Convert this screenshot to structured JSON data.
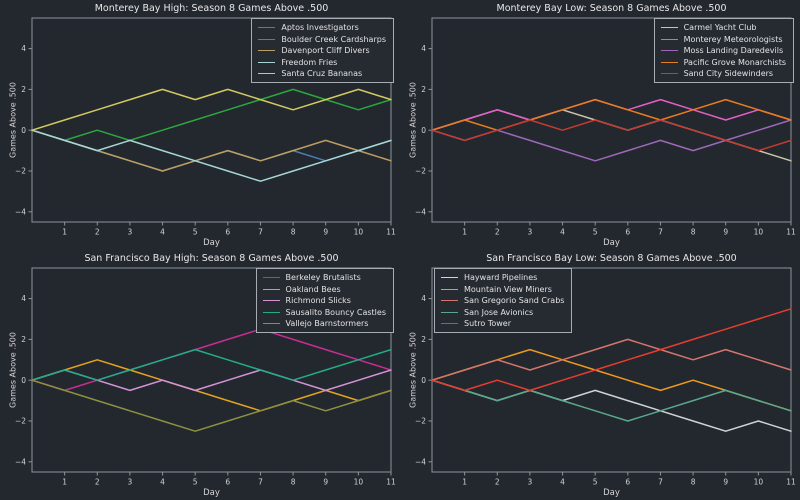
{
  "figure": {
    "background": "#23272e",
    "axis_color": "#8e949c",
    "tick_text_color": "#d2d2d2",
    "xlabel": "Day",
    "ylabel": "Games Above .500",
    "x_ticks": [
      1,
      2,
      3,
      4,
      5,
      6,
      7,
      8,
      9,
      10,
      11
    ],
    "y_ticks": [
      -4,
      -2,
      0,
      2,
      4
    ],
    "xlim": [
      0,
      11
    ],
    "ylim": [
      -4.5,
      5.5
    ],
    "days": [
      0,
      1,
      2,
      3,
      4,
      5,
      6,
      7,
      8,
      9,
      10,
      11
    ]
  },
  "chart_data": [
    {
      "type": "line",
      "title": "Monterey Bay High: Season 8 Games Above .500",
      "xlabel": "Day",
      "ylabel": "Games Above .500",
      "legend_position": "upper right",
      "grid": false,
      "series": [
        {
          "name": "Aptos Investigators",
          "color": "#4a7db5",
          "values": [
            0,
            -0.5,
            -1,
            -1.5,
            -2,
            -1.5,
            -1,
            -1.5,
            -1,
            -1.5,
            -1,
            -0.5
          ]
        },
        {
          "name": "Boulder Creek Cardsharps",
          "color": "#2ca63e",
          "values": [
            0,
            -0.5,
            0,
            -0.5,
            0,
            0.5,
            1,
            1.5,
            2,
            1.5,
            1,
            1.5
          ]
        },
        {
          "name": "Davenport Cliff Divers",
          "color": "#bd9e60",
          "values": [
            0,
            -0.5,
            -1,
            -1.5,
            -2,
            -1.5,
            -1,
            -1.5,
            -1,
            -0.5,
            -1,
            -1.5
          ]
        },
        {
          "name": "Freedom Fries",
          "color": "#a6d7d3",
          "values": [
            0,
            -0.5,
            -1,
            -0.5,
            -1,
            -1.5,
            -2,
            -2.5,
            -2,
            -1.5,
            -1,
            -0.5
          ]
        },
        {
          "name": "Santa Cruz Bananas",
          "color": "#d3c95f",
          "values": [
            0,
            0.5,
            1,
            1.5,
            2,
            1.5,
            2,
            1.5,
            1,
            1.5,
            2,
            1.5
          ]
        }
      ]
    },
    {
      "type": "line",
      "title": "Monterey Bay Low: Season 8 Games Above .500",
      "xlabel": "Day",
      "ylabel": "Games Above .500",
      "legend_position": "upper right",
      "grid": false,
      "series": [
        {
          "name": "Carmel Yacht Club",
          "color": "#cdc5ab",
          "values": [
            0,
            0.5,
            1,
            0.5,
            1,
            0.5,
            0,
            0.5,
            0,
            -0.5,
            -1,
            -1.5
          ]
        },
        {
          "name": "Monterey Meteorologists",
          "color": "#e45fc5",
          "values": [
            0,
            0.5,
            1,
            0.5,
            1,
            1.5,
            1,
            1.5,
            1,
            0.5,
            1,
            0.5
          ]
        },
        {
          "name": "Moss Landing Daredevils",
          "color": "#9d68b8",
          "values": [
            0,
            -0.5,
            0,
            -0.5,
            -1,
            -1.5,
            -1,
            -0.5,
            -1,
            -0.5,
            0,
            0.5
          ]
        },
        {
          "name": "Pacific Grove Monarchists",
          "color": "#e87d1e",
          "values": [
            0,
            0.5,
            0,
            0.5,
            1,
            1.5,
            1,
            0.5,
            1,
            1.5,
            1,
            0.5
          ]
        },
        {
          "name": "Sand City Sidewinders",
          "color": "#c43b31",
          "values": [
            0,
            -0.5,
            0,
            0.5,
            0,
            0.5,
            0,
            0.5,
            0,
            -0.5,
            -1,
            -0.5
          ]
        }
      ]
    },
    {
      "type": "line",
      "title": "San Francisco Bay High: Season 8 Games Above .500",
      "xlabel": "Day",
      "ylabel": "Games Above .500",
      "legend_position": "upper right",
      "grid": false,
      "series": [
        {
          "name": "Berkeley Brutalists",
          "color": "#c72d93",
          "values": [
            0,
            -0.5,
            0,
            0.5,
            1,
            1.5,
            2,
            2.5,
            2,
            1.5,
            1,
            0.5
          ]
        },
        {
          "name": "Oakland Bees",
          "color": "#e2a41f",
          "values": [
            0,
            0.5,
            1,
            0.5,
            0,
            -0.5,
            -1,
            -1.5,
            -1,
            -0.5,
            -1,
            -0.5
          ]
        },
        {
          "name": "Richmond Slicks",
          "color": "#d592d7",
          "values": [
            0,
            0.5,
            0,
            -0.5,
            0,
            -0.5,
            0,
            0.5,
            0,
            -0.5,
            0,
            0.5
          ]
        },
        {
          "name": "Sausalito Bouncy Castles",
          "color": "#1fae85",
          "values": [
            0,
            0.5,
            0,
            0.5,
            1,
            1.5,
            1,
            0.5,
            0,
            0.5,
            1,
            1.5
          ]
        },
        {
          "name": "Vallejo Barnstormers",
          "color": "#8b9140",
          "values": [
            0,
            -0.5,
            -1,
            -1.5,
            -2,
            -2.5,
            -2,
            -1.5,
            -1,
            -1.5,
            -1,
            -0.5
          ]
        }
      ]
    },
    {
      "type": "line",
      "title": "San Francisco Bay Low: Season 8 Games Above .500",
      "xlabel": "Day",
      "ylabel": "Games Above .500",
      "legend_position": "upper left",
      "grid": false,
      "series": [
        {
          "name": "Hayward Pipelines",
          "color": "#cdd3d6",
          "values": [
            0,
            -0.5,
            -1,
            -0.5,
            -1,
            -0.5,
            -1,
            -1.5,
            -2,
            -2.5,
            -2,
            -2.5
          ]
        },
        {
          "name": "Mountain View Miners",
          "color": "#ee9a1d",
          "values": [
            0,
            0.5,
            1,
            1.5,
            1,
            0.5,
            0,
            -0.5,
            0,
            -0.5,
            -1,
            -1.5
          ]
        },
        {
          "name": "San Gregorio Sand Crabs",
          "color": "#d3766d",
          "values": [
            0,
            0.5,
            1,
            0.5,
            1,
            1.5,
            2,
            1.5,
            1,
            1.5,
            1,
            0.5
          ]
        },
        {
          "name": "San Jose Avionics",
          "color": "#5aa88b",
          "values": [
            0,
            -0.5,
            -1,
            -0.5,
            -1,
            -1.5,
            -2,
            -1.5,
            -1,
            -0.5,
            -1,
            -1.5
          ]
        },
        {
          "name": "Sutro Tower",
          "color": "#e63d30",
          "values": [
            0,
            -0.5,
            0,
            -0.5,
            0,
            0.5,
            1,
            1.5,
            2,
            2.5,
            3,
            3.5
          ]
        }
      ]
    }
  ]
}
